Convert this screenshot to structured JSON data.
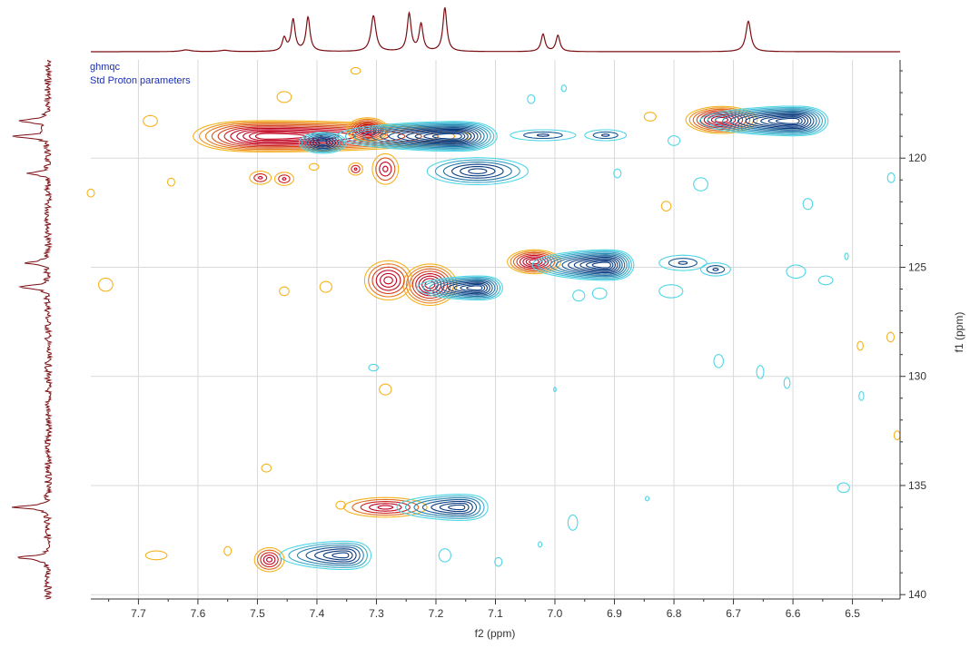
{
  "chart_data": {
    "type": "2d-nmr-contour",
    "experiment": "ghmqc",
    "parameter_set": "Std Proton parameters",
    "x_axis": {
      "label": "f2 (ppm)",
      "range": [
        7.78,
        6.42
      ],
      "reversed": true,
      "ticks": [
        "7.7",
        "7.6",
        "7.5",
        "7.4",
        "7.3",
        "7.2",
        "7.1",
        "7.0",
        "6.9",
        "6.8",
        "6.7",
        "6.6",
        "6.5"
      ]
    },
    "y_axis": {
      "label": "f1 (ppm)",
      "range": [
        115.5,
        140.2
      ],
      "reversed": true,
      "position": "right",
      "ticks": [
        "120",
        "125",
        "130",
        "135",
        "140"
      ]
    },
    "grid": true,
    "colors": {
      "positive_inner": "#c0001e",
      "positive_outer": "#f5b21f",
      "negative_inner": "#0a3a7e",
      "negative_outer": "#4fd6e6",
      "projection": "#7a0d12",
      "grid": "#d9d9d9",
      "axis": "#333333",
      "label": "#1b2fb5"
    },
    "top_projection_peaks": [
      {
        "x": 7.455,
        "h": 0.3,
        "w": 0.004
      },
      {
        "x": 7.44,
        "h": 0.72,
        "w": 0.004
      },
      {
        "x": 7.415,
        "h": 0.78,
        "w": 0.004
      },
      {
        "x": 7.305,
        "h": 0.82,
        "w": 0.005
      },
      {
        "x": 7.245,
        "h": 0.86,
        "w": 0.004
      },
      {
        "x": 7.225,
        "h": 0.62,
        "w": 0.004
      },
      {
        "x": 7.185,
        "h": 1.0,
        "w": 0.004
      },
      {
        "x": 7.02,
        "h": 0.4,
        "w": 0.004
      },
      {
        "x": 6.995,
        "h": 0.37,
        "w": 0.004
      },
      {
        "x": 6.675,
        "h": 0.7,
        "w": 0.005
      },
      {
        "x": 7.62,
        "h": 0.04,
        "w": 0.01
      },
      {
        "x": 7.555,
        "h": 0.03,
        "w": 0.01
      }
    ],
    "left_projection_peaks": [
      {
        "y": 118.3,
        "h": 0.8,
        "w": 0.09
      },
      {
        "y": 119.0,
        "h": 1.0,
        "w": 0.08
      },
      {
        "y": 120.7,
        "h": 0.6,
        "w": 0.08
      },
      {
        "y": 124.8,
        "h": 0.65,
        "w": 0.08
      },
      {
        "y": 125.9,
        "h": 0.8,
        "w": 0.08
      },
      {
        "y": 136.0,
        "h": 0.9,
        "w": 0.08
      },
      {
        "y": 138.3,
        "h": 0.85,
        "w": 0.09
      }
    ],
    "contours": [
      {
        "sign": "positive",
        "cx": 7.48,
        "cy": 119.0,
        "rx": 0.26,
        "ry": 0.72,
        "skew": 1.5,
        "levels": 11
      },
      {
        "sign": "positive",
        "cx": 7.315,
        "cy": 118.7,
        "rx": 0.035,
        "ry": 0.55,
        "skew": 0,
        "levels": 8
      },
      {
        "sign": "negative",
        "cx": 7.39,
        "cy": 119.3,
        "rx": 0.04,
        "ry": 0.48,
        "skew": 0,
        "levels": 8
      },
      {
        "sign": "negative",
        "cx": 7.17,
        "cy": 119.0,
        "rx": 0.15,
        "ry": 0.68,
        "skew": -1.6,
        "levels": 12
      },
      {
        "sign": "negative",
        "cx": 7.02,
        "cy": 118.95,
        "rx": 0.055,
        "ry": 0.25,
        "skew": 0,
        "levels": 3
      },
      {
        "sign": "negative",
        "cx": 6.915,
        "cy": 118.95,
        "rx": 0.035,
        "ry": 0.25,
        "skew": 0,
        "levels": 3
      },
      {
        "sign": "positive",
        "cx": 6.72,
        "cy": 118.25,
        "rx": 0.06,
        "ry": 0.62,
        "skew": 0,
        "levels": 9
      },
      {
        "sign": "negative",
        "cx": 6.6,
        "cy": 118.3,
        "rx": 0.12,
        "ry": 0.68,
        "skew": -1.5,
        "levels": 11
      },
      {
        "sign": "negative",
        "cx": 7.13,
        "cy": 120.6,
        "rx": 0.085,
        "ry": 0.62,
        "skew": 0,
        "levels": 6
      },
      {
        "sign": "positive",
        "cx": 7.285,
        "cy": 120.5,
        "rx": 0.022,
        "ry": 0.7,
        "skew": 0,
        "levels": 4
      },
      {
        "sign": "positive",
        "cx": 7.335,
        "cy": 120.5,
        "rx": 0.012,
        "ry": 0.28,
        "skew": 0,
        "levels": 3
      },
      {
        "sign": "positive",
        "cx": 7.495,
        "cy": 120.9,
        "rx": 0.018,
        "ry": 0.3,
        "skew": 0,
        "levels": 3
      },
      {
        "sign": "positive",
        "cx": 7.455,
        "cy": 120.95,
        "rx": 0.016,
        "ry": 0.3,
        "skew": 0,
        "levels": 3
      },
      {
        "sign": "positive",
        "cx": 7.035,
        "cy": 124.75,
        "rx": 0.045,
        "ry": 0.55,
        "skew": 0,
        "levels": 8
      },
      {
        "sign": "negative",
        "cx": 6.915,
        "cy": 124.9,
        "rx": 0.095,
        "ry": 0.7,
        "skew": -1.4,
        "levels": 11
      },
      {
        "sign": "negative",
        "cx": 6.785,
        "cy": 124.8,
        "rx": 0.04,
        "ry": 0.35,
        "skew": 0,
        "levels": 3
      },
      {
        "sign": "negative",
        "cx": 6.73,
        "cy": 125.1,
        "rx": 0.025,
        "ry": 0.3,
        "skew": 0,
        "levels": 3
      },
      {
        "sign": "positive",
        "cx": 7.21,
        "cy": 125.8,
        "rx": 0.045,
        "ry": 0.95,
        "skew": 0,
        "levels": 8
      },
      {
        "sign": "positive",
        "cx": 7.28,
        "cy": 125.6,
        "rx": 0.04,
        "ry": 0.9,
        "skew": 0,
        "levels": 6
      },
      {
        "sign": "negative",
        "cx": 7.13,
        "cy": 125.95,
        "rx": 0.08,
        "ry": 0.55,
        "skew": -1.2,
        "levels": 9
      },
      {
        "sign": "positive",
        "cx": 7.285,
        "cy": 136.0,
        "rx": 0.07,
        "ry": 0.45,
        "skew": 0,
        "levels": 5
      },
      {
        "sign": "negative",
        "cx": 7.16,
        "cy": 136.0,
        "rx": 0.085,
        "ry": 0.6,
        "skew": -1.0,
        "levels": 7
      },
      {
        "sign": "positive",
        "cx": 7.48,
        "cy": 138.4,
        "rx": 0.025,
        "ry": 0.55,
        "skew": 0,
        "levels": 5
      },
      {
        "sign": "negative",
        "cx": 7.355,
        "cy": 138.2,
        "rx": 0.085,
        "ry": 0.65,
        "skew": -1.1,
        "levels": 7
      }
    ],
    "noise_contours": [
      {
        "sign": "positive",
        "cx": 7.68,
        "cy": 118.3,
        "rx": 0.012,
        "ry": 0.25
      },
      {
        "sign": "positive",
        "cx": 7.455,
        "cy": 117.2,
        "rx": 0.012,
        "ry": 0.25
      },
      {
        "sign": "positive",
        "cx": 7.335,
        "cy": 116.0,
        "rx": 0.008,
        "ry": 0.15
      },
      {
        "sign": "positive",
        "cx": 7.755,
        "cy": 125.8,
        "rx": 0.012,
        "ry": 0.3
      },
      {
        "sign": "positive",
        "cx": 7.645,
        "cy": 121.1,
        "rx": 0.006,
        "ry": 0.18
      },
      {
        "sign": "positive",
        "cx": 7.78,
        "cy": 121.6,
        "rx": 0.006,
        "ry": 0.18
      },
      {
        "sign": "positive",
        "cx": 7.405,
        "cy": 120.4,
        "rx": 0.008,
        "ry": 0.15
      },
      {
        "sign": "positive",
        "cx": 7.385,
        "cy": 125.9,
        "rx": 0.01,
        "ry": 0.25
      },
      {
        "sign": "positive",
        "cx": 7.285,
        "cy": 130.6,
        "rx": 0.01,
        "ry": 0.25
      },
      {
        "sign": "positive",
        "cx": 7.485,
        "cy": 134.2,
        "rx": 0.008,
        "ry": 0.18
      },
      {
        "sign": "positive",
        "cx": 7.455,
        "cy": 126.1,
        "rx": 0.008,
        "ry": 0.2
      },
      {
        "sign": "positive",
        "cx": 6.84,
        "cy": 118.1,
        "rx": 0.01,
        "ry": 0.2
      },
      {
        "sign": "positive",
        "cx": 7.67,
        "cy": 138.2,
        "rx": 0.018,
        "ry": 0.2
      },
      {
        "sign": "positive",
        "cx": 7.55,
        "cy": 138.0,
        "rx": 0.006,
        "ry": 0.2
      },
      {
        "sign": "positive",
        "cx": 7.36,
        "cy": 135.9,
        "rx": 0.008,
        "ry": 0.18
      },
      {
        "sign": "positive",
        "cx": 6.813,
        "cy": 122.2,
        "rx": 0.008,
        "ry": 0.22
      },
      {
        "sign": "positive",
        "cx": 6.436,
        "cy": 128.2,
        "rx": 0.006,
        "ry": 0.22
      },
      {
        "sign": "positive",
        "cx": 6.487,
        "cy": 128.6,
        "rx": 0.005,
        "ry": 0.2
      },
      {
        "sign": "positive",
        "cx": 6.425,
        "cy": 132.7,
        "rx": 0.005,
        "ry": 0.2
      },
      {
        "sign": "negative",
        "cx": 6.8,
        "cy": 119.2,
        "rx": 0.01,
        "ry": 0.22
      },
      {
        "sign": "negative",
        "cx": 7.04,
        "cy": 117.3,
        "rx": 0.006,
        "ry": 0.2
      },
      {
        "sign": "negative",
        "cx": 6.985,
        "cy": 116.8,
        "rx": 0.004,
        "ry": 0.15
      },
      {
        "sign": "negative",
        "cx": 6.895,
        "cy": 120.7,
        "rx": 0.006,
        "ry": 0.2
      },
      {
        "sign": "negative",
        "cx": 6.755,
        "cy": 121.2,
        "rx": 0.012,
        "ry": 0.3
      },
      {
        "sign": "negative",
        "cx": 6.575,
        "cy": 122.1,
        "rx": 0.008,
        "ry": 0.25
      },
      {
        "sign": "negative",
        "cx": 6.435,
        "cy": 120.9,
        "rx": 0.006,
        "ry": 0.22
      },
      {
        "sign": "negative",
        "cx": 6.595,
        "cy": 125.2,
        "rx": 0.016,
        "ry": 0.3
      },
      {
        "sign": "negative",
        "cx": 6.545,
        "cy": 125.6,
        "rx": 0.012,
        "ry": 0.2
      },
      {
        "sign": "negative",
        "cx": 6.805,
        "cy": 126.1,
        "rx": 0.02,
        "ry": 0.3
      },
      {
        "sign": "negative",
        "cx": 6.96,
        "cy": 126.3,
        "rx": 0.01,
        "ry": 0.25
      },
      {
        "sign": "negative",
        "cx": 6.925,
        "cy": 126.2,
        "rx": 0.012,
        "ry": 0.25
      },
      {
        "sign": "negative",
        "cx": 6.725,
        "cy": 129.3,
        "rx": 0.008,
        "ry": 0.3
      },
      {
        "sign": "negative",
        "cx": 6.655,
        "cy": 129.8,
        "rx": 0.006,
        "ry": 0.3
      },
      {
        "sign": "negative",
        "cx": 6.61,
        "cy": 130.3,
        "rx": 0.005,
        "ry": 0.25
      },
      {
        "sign": "negative",
        "cx": 6.485,
        "cy": 130.9,
        "rx": 0.004,
        "ry": 0.2
      },
      {
        "sign": "negative",
        "cx": 7.305,
        "cy": 129.6,
        "rx": 0.008,
        "ry": 0.15
      },
      {
        "sign": "negative",
        "cx": 7.0,
        "cy": 130.6,
        "rx": 0.002,
        "ry": 0.1
      },
      {
        "sign": "negative",
        "cx": 6.515,
        "cy": 135.1,
        "rx": 0.01,
        "ry": 0.22
      },
      {
        "sign": "negative",
        "cx": 6.97,
        "cy": 136.7,
        "rx": 0.008,
        "ry": 0.35
      },
      {
        "sign": "negative",
        "cx": 6.845,
        "cy": 135.6,
        "rx": 0.003,
        "ry": 0.1
      },
      {
        "sign": "negative",
        "cx": 7.025,
        "cy": 137.7,
        "rx": 0.003,
        "ry": 0.12
      },
      {
        "sign": "negative",
        "cx": 7.185,
        "cy": 138.2,
        "rx": 0.01,
        "ry": 0.3
      },
      {
        "sign": "negative",
        "cx": 7.095,
        "cy": 138.5,
        "rx": 0.006,
        "ry": 0.2
      },
      {
        "sign": "negative",
        "cx": 6.51,
        "cy": 124.5,
        "rx": 0.003,
        "ry": 0.15
      }
    ]
  }
}
